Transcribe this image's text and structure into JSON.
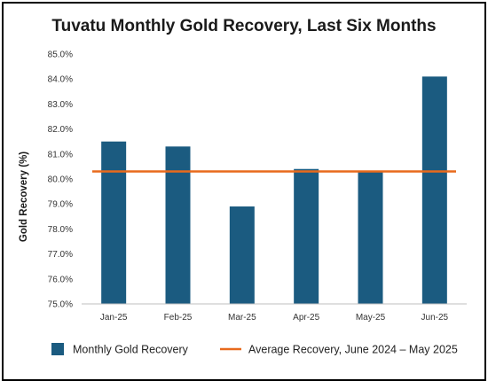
{
  "chart_data": {
    "type": "bar",
    "title": "Tuvatu Monthly Gold Recovery, Last Six Months",
    "xlabel": "",
    "ylabel": "Gold Recovery (%)",
    "categories": [
      "Jan-25",
      "Feb-25",
      "Mar-25",
      "Apr-25",
      "May-25",
      "Jun-25"
    ],
    "series": [
      {
        "name": "Monthly Gold Recovery",
        "values": [
          81.5,
          81.3,
          78.9,
          80.4,
          80.3,
          84.1
        ],
        "color": "#1b5b80"
      }
    ],
    "reference_line": {
      "name": "Average Recovery, June 2024 – May 2025",
      "value": 80.3,
      "color": "#e86a1c"
    },
    "ylim": [
      75.0,
      85.0
    ],
    "yticks": [
      {
        "value": 75,
        "label": "75.0%"
      },
      {
        "value": 76,
        "label": "76.0%"
      },
      {
        "value": 77,
        "label": "77.0%"
      },
      {
        "value": 78,
        "label": "78.0%"
      },
      {
        "value": 79,
        "label": "79.0%"
      },
      {
        "value": 80,
        "label": "80.0%"
      },
      {
        "value": 81,
        "label": "81.0%"
      },
      {
        "value": 82,
        "label": "82.0%"
      },
      {
        "value": 83,
        "label": "83.0%"
      },
      {
        "value": 84,
        "label": "84.0%"
      },
      {
        "value": 85,
        "label": "85.0%"
      }
    ],
    "grid": false,
    "legend_position": "bottom"
  }
}
